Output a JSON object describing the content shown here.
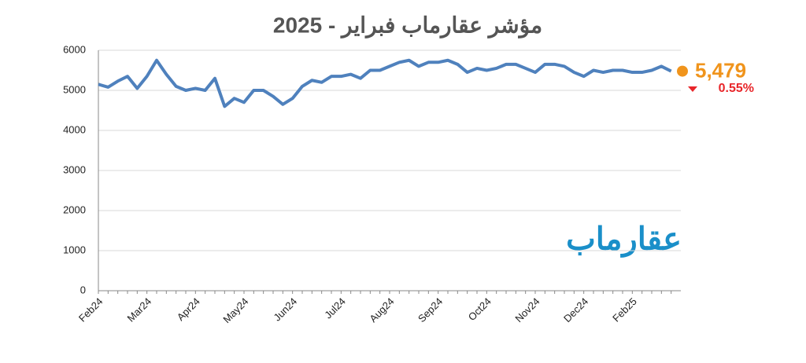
{
  "chart_data": {
    "type": "line",
    "title": "مؤشر عقارماب فبراير - 2025",
    "watermark": "عقارماب",
    "change_label": "0.55%",
    "categories": [
      "Feb24",
      null,
      null,
      null,
      null,
      "Mar24",
      null,
      null,
      null,
      null,
      "Apr24",
      null,
      null,
      null,
      null,
      "May24",
      null,
      null,
      null,
      null,
      "Jun24",
      null,
      null,
      null,
      null,
      "Jul24",
      null,
      null,
      null,
      null,
      "Aug24",
      null,
      null,
      null,
      null,
      "Sep24",
      null,
      null,
      null,
      null,
      "Oct24",
      null,
      null,
      null,
      null,
      "Nov24",
      null,
      null,
      null,
      null,
      "Dec24",
      null,
      null,
      null,
      null,
      "Feb25",
      null,
      null,
      null,
      null
    ],
    "series": [
      {
        "color": "#4f81bd",
        "values": [
          5150,
          5080,
          5230,
          5350,
          5050,
          5350,
          5750,
          5400,
          5100,
          5000,
          5050,
          5000,
          5300,
          4600,
          4800,
          4700,
          5000,
          5000,
          4850,
          4650,
          4800,
          5100,
          5250,
          5200,
          5350,
          5350,
          5400,
          5300,
          5500,
          5500,
          5600,
          5700,
          5750,
          5600,
          5700,
          5700,
          5750,
          5650,
          5450,
          5550,
          5500,
          5550,
          5650,
          5650,
          5550,
          5450,
          5650,
          5650,
          5600,
          5450,
          5350,
          5500,
          5450,
          5500,
          5500,
          5450,
          5450,
          5500,
          5600,
          5479
        ],
        "value_labels": [
          null,
          null,
          null,
          null,
          null,
          null,
          null,
          null,
          null,
          null,
          null,
          null,
          null,
          null,
          null,
          null,
          null,
          null,
          null,
          null,
          null,
          null,
          null,
          null,
          null,
          null,
          null,
          null,
          null,
          null,
          null,
          null,
          null,
          null,
          null,
          null,
          null,
          null,
          null,
          null,
          null,
          null,
          null,
          null,
          null,
          null,
          null,
          null,
          null,
          null,
          null,
          null,
          null,
          null,
          null,
          null,
          null,
          null,
          null,
          "5,479"
        ]
      }
    ],
    "ylim": [
      0,
      6000
    ],
    "yticks": [
      0,
      1000,
      2000,
      3000,
      4000,
      5000,
      6000
    ],
    "grid": true,
    "last_point_color": "#f0941c",
    "change_color": "#e8262a"
  }
}
